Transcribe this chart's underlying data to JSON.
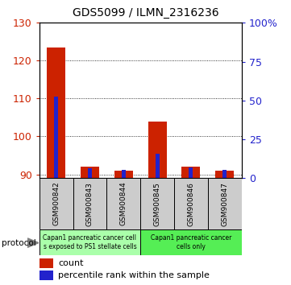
{
  "title": "GDS5099 / ILMN_2316236",
  "samples": [
    "GSM900842",
    "GSM900843",
    "GSM900844",
    "GSM900845",
    "GSM900846",
    "GSM900847"
  ],
  "red_values": [
    123.5,
    92.0,
    91.0,
    104.0,
    92.0,
    91.0
  ],
  "blue_values": [
    110.5,
    91.5,
    91.2,
    95.5,
    91.8,
    91.2
  ],
  "ylim_min": 89,
  "ylim_max": 130,
  "yticks": [
    90,
    100,
    110,
    120,
    130
  ],
  "right_ytick_percents": [
    0,
    25,
    50,
    75,
    100
  ],
  "right_ytick_labels": [
    "0",
    "25",
    "50",
    "75",
    "100%"
  ],
  "red_color": "#cc2200",
  "blue_color": "#2222cc",
  "group1_label": "Capan1 pancreatic cancer cell\ns exposed to PS1 stellate cells",
  "group2_label": "Capan1 pancreatic cancer\ncells only",
  "group1_indices": [
    0,
    1,
    2
  ],
  "group2_indices": [
    3,
    4,
    5
  ],
  "group1_color": "#aaffaa",
  "group2_color": "#55ee55",
  "protocol_label": "protocol",
  "legend_count": "count",
  "legend_percentile": "percentile rank within the sample",
  "red_bar_width": 0.55,
  "blue_bar_width": 0.12,
  "tick_label_color_left": "#cc2200",
  "tick_label_color_right": "#2222cc",
  "title_fontsize": 10,
  "label_fontsize": 7,
  "legend_fontsize": 8,
  "sample_fontsize": 6.5
}
